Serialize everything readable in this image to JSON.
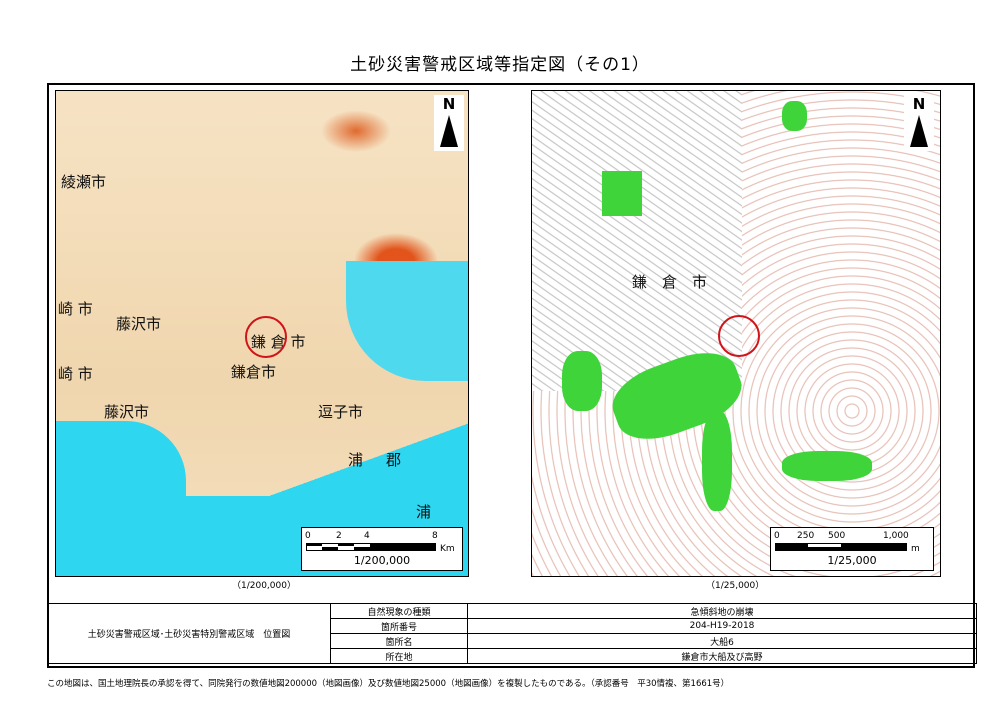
{
  "title": "土砂災害警戒区域等指定図（その1）",
  "left_map": {
    "places": [
      "綾瀬市",
      "崎 市",
      "藤沢市",
      "鎌 倉 市",
      "崎 市",
      "鎌倉市",
      "藤沢市",
      "逗子市",
      "浦",
      "郡",
      "浦"
    ],
    "north": "N",
    "scale_ticks": [
      "0",
      "2",
      "4",
      "8"
    ],
    "scale_unit": "Km",
    "scale_label": "1/200,000",
    "caption": "（1/200,000）"
  },
  "right_map": {
    "places": [
      "鎌",
      "倉",
      "市"
    ],
    "north": "N",
    "scale_ticks": [
      "0",
      "250",
      "500",
      "1,000"
    ],
    "scale_unit": "m",
    "scale_label": "1/25,000",
    "caption": "（1/25,000）"
  },
  "info": {
    "left_label": "土砂災害警戒区域･土砂災害特別警戒区域　位置図",
    "rows": [
      {
        "key": "自然現象の種類",
        "value": "急傾斜地の崩壊"
      },
      {
        "key": "箇所番号",
        "value": "204-H19-2018"
      },
      {
        "key": "箇所名",
        "value": "大船6"
      },
      {
        "key": "所在地",
        "value": "鎌倉市大船及び高野"
      }
    ]
  },
  "footer": "この地図は、国土地理院長の承認を得て、同院発行の数値地図200000（地図画像）及び数値地図25000（地図画像）を複製したものである。（承認番号　平30情複、第1661号）",
  "colors": {
    "sea": "#2fd6f0",
    "hazard_zone": "#3fd43a",
    "location_circle": "#d0141a"
  }
}
